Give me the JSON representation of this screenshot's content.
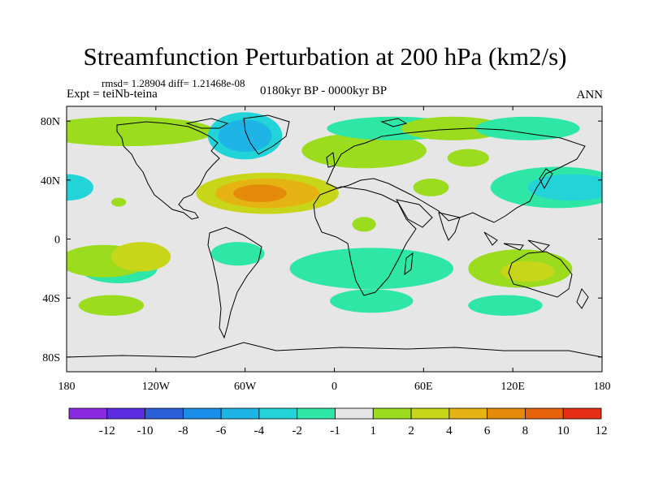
{
  "title": "Streamfunction Perturbation at 200 hPa (km2/s)",
  "stats_line": "rmsd= 1.28904  diff= 1.21468e-08",
  "experiment_line": "Expt = teiNb-teina",
  "period_line": "0180kyr BP - 0000kyr BP",
  "season": "ANN",
  "colors": {
    "background": "#e6e6e6",
    "coastline": "#000000",
    "contour_bins": [
      "#8a2be2",
      "#5b2ce0",
      "#2a5fd8",
      "#1a8ee8",
      "#1eb5e6",
      "#22d4d8",
      "#2ee6a6",
      "#e6e6e6",
      "#9bdc1e",
      "#c8d61a",
      "#e6b412",
      "#e68a0c",
      "#e6620c",
      "#e62f14"
    ]
  },
  "chart_data": {
    "type": "heatmap",
    "title": "Streamfunction Perturbation at 200 hPa (km2/s)",
    "projection": "cylindrical equidistant",
    "lon_range": [
      -180,
      180
    ],
    "lat_range": [
      -90,
      90
    ],
    "x_ticks": [
      {
        "value": -180,
        "label": "180"
      },
      {
        "value": -120,
        "label": "120W"
      },
      {
        "value": -60,
        "label": "60W"
      },
      {
        "value": 0,
        "label": "0"
      },
      {
        "value": 60,
        "label": "60E"
      },
      {
        "value": 120,
        "label": "120E"
      },
      {
        "value": 180,
        "label": "180"
      }
    ],
    "y_ticks": [
      {
        "value": 80,
        "label": "80N"
      },
      {
        "value": 40,
        "label": "40N"
      },
      {
        "value": 0,
        "label": "0"
      },
      {
        "value": -40,
        "label": "40S"
      },
      {
        "value": -80,
        "label": "80S"
      }
    ],
    "colorbar": {
      "levels": [
        -12,
        -10,
        -8,
        -6,
        -4,
        -2,
        -1,
        1,
        2,
        4,
        6,
        8,
        10,
        12
      ],
      "labels": [
        "-12",
        "-10",
        "-8",
        "-6",
        "-4",
        "-2",
        "-1",
        "1",
        "2",
        "4",
        "6",
        "8",
        "10",
        "12"
      ]
    },
    "anomalies": [
      {
        "lon": -140,
        "lat": 73,
        "rlon": 60,
        "rlat": 10,
        "bin": 8
      },
      {
        "lon": -60,
        "lat": 70,
        "rlon": 25,
        "rlat": 16,
        "bin": 5
      },
      {
        "lon": -60,
        "lat": 70,
        "rlon": 18,
        "rlat": 11,
        "bin": 4
      },
      {
        "lon": -45,
        "lat": 31,
        "rlon": 48,
        "rlat": 14,
        "bin": 9
      },
      {
        "lon": -45,
        "lat": 31,
        "rlon": 35,
        "rlat": 10,
        "bin": 10
      },
      {
        "lon": -50,
        "lat": 31,
        "rlon": 18,
        "rlat": 6,
        "bin": 11
      },
      {
        "lon": 20,
        "lat": 60,
        "rlon": 42,
        "rlat": 12,
        "bin": 8
      },
      {
        "lon": 40,
        "lat": 75,
        "rlon": 45,
        "rlat": 8,
        "bin": 6
      },
      {
        "lon": 80,
        "lat": 75,
        "rlon": 35,
        "rlat": 8,
        "bin": 8
      },
      {
        "lon": 130,
        "lat": 75,
        "rlon": 35,
        "rlat": 8,
        "bin": 6
      },
      {
        "lon": 150,
        "lat": 35,
        "rlon": 45,
        "rlat": 14,
        "bin": 6
      },
      {
        "lon": 160,
        "lat": 35,
        "rlon": 30,
        "rlat": 9,
        "bin": 5
      },
      {
        "lon": 90,
        "lat": 55,
        "rlon": 14,
        "rlat": 6,
        "bin": 8
      },
      {
        "lon": -180,
        "lat": 35,
        "rlon": 18,
        "rlat": 9,
        "bin": 5
      },
      {
        "lon": -145,
        "lat": -20,
        "rlon": 26,
        "rlat": 10,
        "bin": 6
      },
      {
        "lon": -148,
        "lat": -18,
        "rlon": 15,
        "rlat": 7,
        "bin": 5
      },
      {
        "lon": -155,
        "lat": -15,
        "rlon": 30,
        "rlat": 11,
        "bin": 8
      },
      {
        "lon": -130,
        "lat": -12,
        "rlon": 20,
        "rlat": 10,
        "bin": 9
      },
      {
        "lon": -150,
        "lat": -45,
        "rlon": 22,
        "rlat": 7,
        "bin": 8
      },
      {
        "lon": -65,
        "lat": -10,
        "rlon": 18,
        "rlat": 8,
        "bin": 6
      },
      {
        "lon": 25,
        "lat": -20,
        "rlon": 55,
        "rlat": 14,
        "bin": 6
      },
      {
        "lon": 25,
        "lat": -42,
        "rlon": 28,
        "rlat": 8,
        "bin": 6
      },
      {
        "lon": 125,
        "lat": -20,
        "rlon": 35,
        "rlat": 13,
        "bin": 8
      },
      {
        "lon": 130,
        "lat": -22,
        "rlon": 18,
        "rlat": 7,
        "bin": 9
      },
      {
        "lon": 115,
        "lat": -45,
        "rlon": 25,
        "rlat": 7,
        "bin": 6
      },
      {
        "lon": 20,
        "lat": 10,
        "rlon": 8,
        "rlat": 5,
        "bin": 8
      },
      {
        "lon": 65,
        "lat": 35,
        "rlon": 12,
        "rlat": 6,
        "bin": 8
      },
      {
        "lon": -145,
        "lat": 25,
        "rlon": 5,
        "rlat": 3,
        "bin": 8
      }
    ]
  }
}
